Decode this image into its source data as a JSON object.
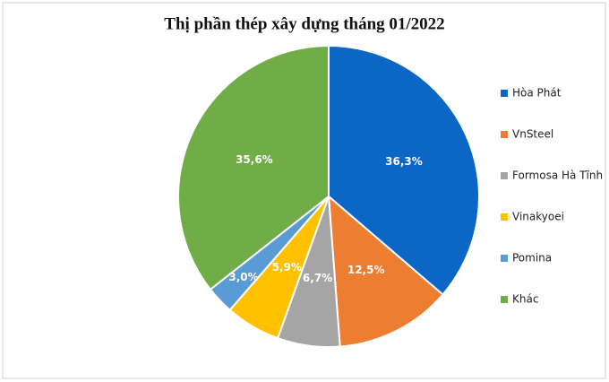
{
  "chart_data": {
    "type": "pie",
    "title": "Thị phần thép xây dựng tháng 01/2022",
    "categories": [
      "Hòa Phát",
      "VnSteel",
      "Formosa Hà Tĩnh",
      "Vinakyoei",
      "Pomina",
      "Khác"
    ],
    "values": [
      36.3,
      12.5,
      6.7,
      5.9,
      3.0,
      35.6
    ],
    "value_labels": [
      "36,3%",
      "12,5%",
      "6,7%",
      "5,9%",
      "3,0%",
      "35,6%"
    ],
    "colors": [
      "#0b66c6",
      "#ed7d31",
      "#a5a5a5",
      "#ffc000",
      "#5b9bd5",
      "#70ad47"
    ],
    "legend": "right"
  }
}
